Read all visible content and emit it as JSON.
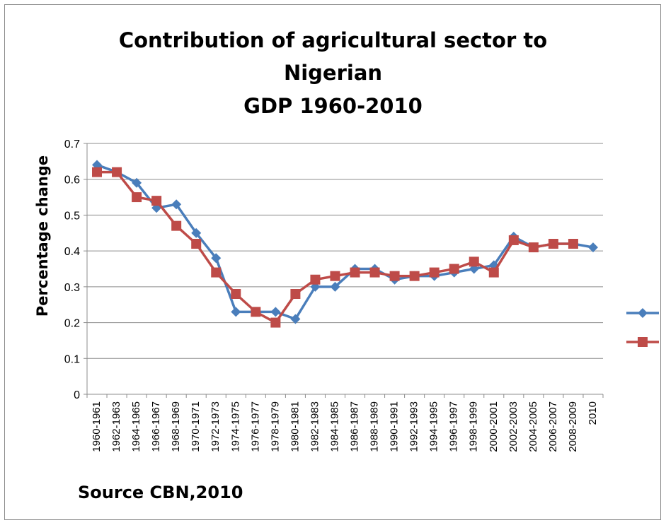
{
  "chart_data": {
    "type": "line",
    "title_lines": [
      "Contribution of agricultural sector to",
      "Nigerian",
      "GDP 1960-2010"
    ],
    "xlabel": "",
    "ylabel": "Percentage change",
    "ylim": [
      0,
      0.7
    ],
    "yticks": [
      "0",
      "0.1",
      "0.2",
      "0.3",
      "0.4",
      "0.5",
      "0.6",
      "0.7"
    ],
    "grid": "horizontal",
    "legend_position": "right",
    "categories": [
      "1960-1961",
      "1962-1963",
      "1964-1965",
      "1966-1967",
      "1968-1969",
      "1970-1971",
      "1972-1973",
      "1974-1975",
      "1976-1977",
      "1978-1979",
      "1980-1981",
      "1982-1983",
      "1984-1985",
      "1986-1987",
      "1988-1989",
      "1990-1991",
      "1992-1993",
      "1994-1995",
      "1996-1997",
      "1998-1999",
      "2000-2001",
      "2002-2003",
      "2004-2005",
      "2006-2007",
      "2008-2009",
      "2010"
    ],
    "series": [
      {
        "color": "#4a7ebb",
        "marker": "diamond",
        "values": [
          0.64,
          0.62,
          0.59,
          0.52,
          0.53,
          0.45,
          0.38,
          0.23,
          0.23,
          0.23,
          0.21,
          0.3,
          0.3,
          0.35,
          0.35,
          0.32,
          0.33,
          0.33,
          0.34,
          0.35,
          0.36,
          0.44,
          0.41,
          0.42,
          0.42,
          0.41
        ]
      },
      {
        "color": "#be4b48",
        "marker": "square",
        "values": [
          0.62,
          0.62,
          0.55,
          0.54,
          0.47,
          0.42,
          0.34,
          0.28,
          0.23,
          0.2,
          0.28,
          0.32,
          0.33,
          0.34,
          0.34,
          0.33,
          0.33,
          0.34,
          0.35,
          0.37,
          0.34,
          0.43,
          0.41,
          0.42,
          0.42,
          null
        ]
      }
    ],
    "footnote": "Source CBN,2010"
  }
}
